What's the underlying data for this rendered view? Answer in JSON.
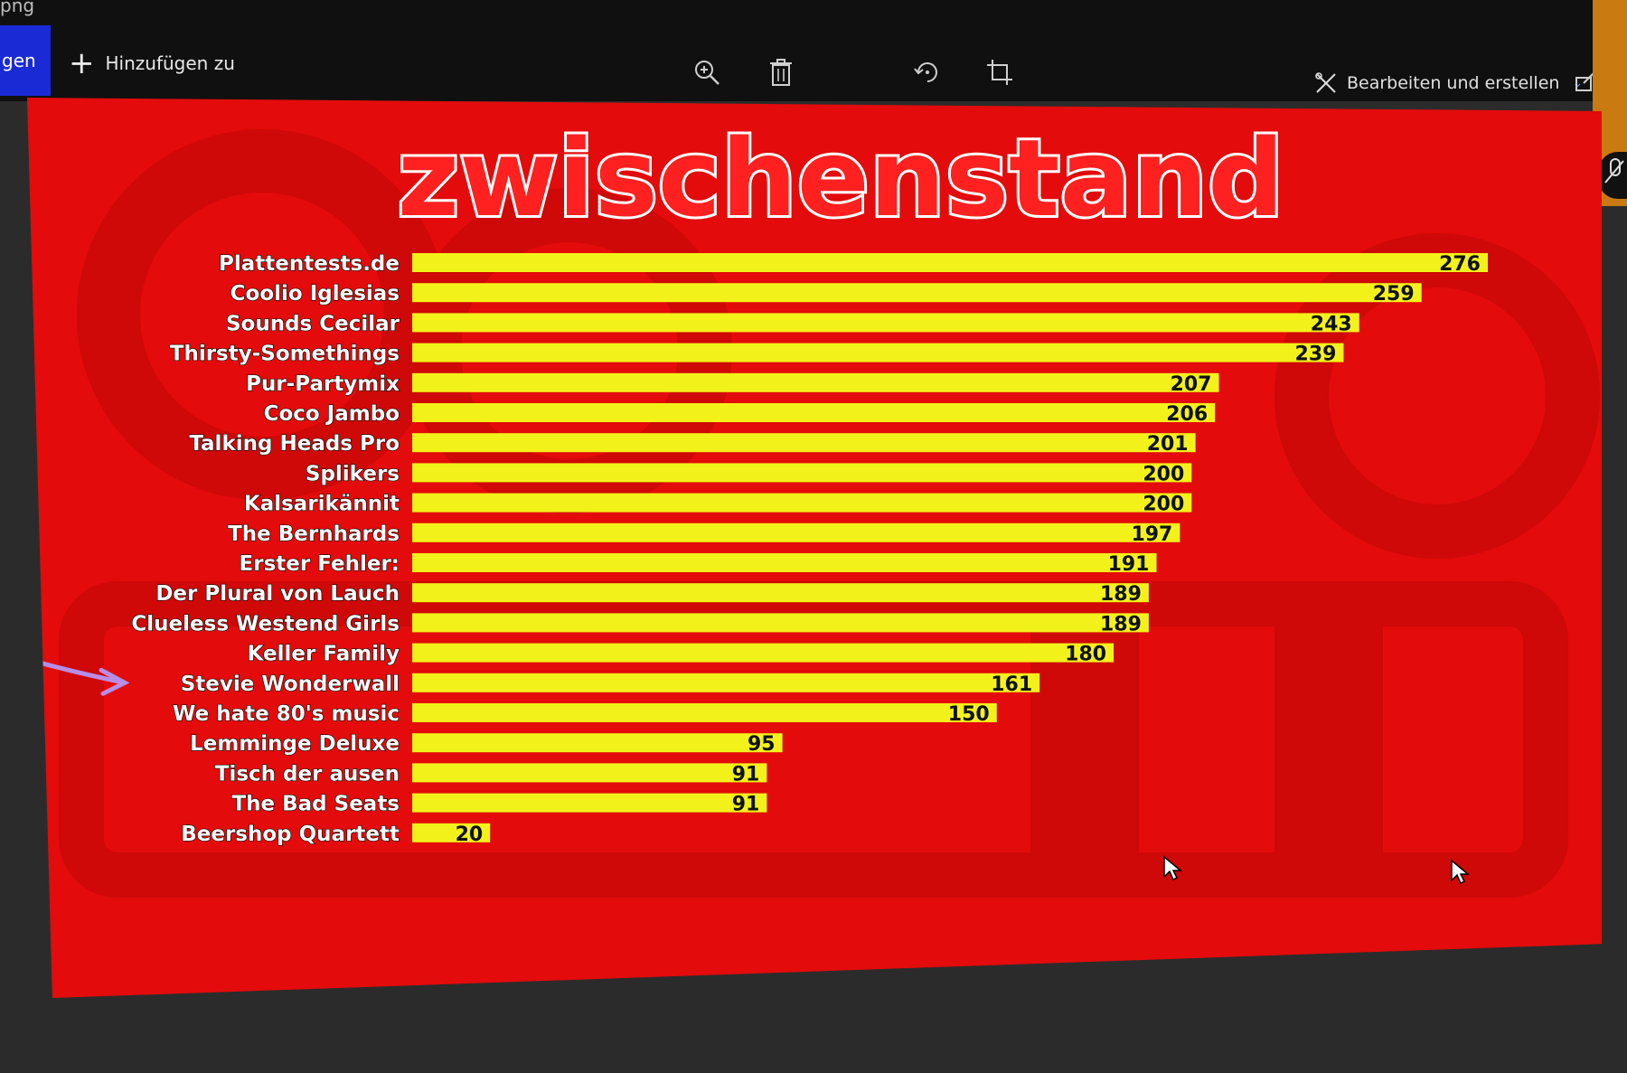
{
  "window": {
    "filename": "png",
    "left_button_label": "gen",
    "add_label": "Hinzufügen zu",
    "edit_label": "Bearbeiten und erstellen"
  },
  "icons": {
    "zoom": "zoom-in-icon",
    "delete": "trash-icon",
    "rotate": "rotate-icon",
    "crop": "crop-icon",
    "edit": "edit-create-icon",
    "share": "share-icon",
    "add": "plus-icon"
  },
  "colors": {
    "slide_bg": "#e30b0b",
    "bar": "#f2f21a",
    "label": "#ffffff",
    "value": "#111111",
    "arrow": "#b78de6"
  },
  "chart_data": {
    "type": "bar",
    "orientation": "horizontal",
    "title": "zwischenstand",
    "categories": [
      "Plattentests.de",
      "Coolio Iglesias",
      "Sounds Cecilar",
      "Thirsty-Somethings",
      "Pur-Partymix",
      "Coco Jambo",
      "Talking Heads Pro",
      "Splikers",
      "Kalsarikännit",
      "The Bernhards",
      "Erster Fehler:",
      "Der Plural von Lauch",
      "Clueless Westend Girls",
      "Keller Family",
      "Stevie Wonderwall",
      "We hate 80's music",
      "Lemminge Deluxe",
      "Tisch der ausen",
      "The Bad Seats",
      "Beershop Quartett"
    ],
    "values": [
      276,
      259,
      243,
      239,
      207,
      206,
      201,
      200,
      200,
      197,
      191,
      189,
      189,
      180,
      161,
      150,
      95,
      91,
      91,
      20
    ],
    "highlighted": "Stevie Wonderwall",
    "xlim": [
      0,
      276
    ],
    "grid": false,
    "legend": "none"
  }
}
